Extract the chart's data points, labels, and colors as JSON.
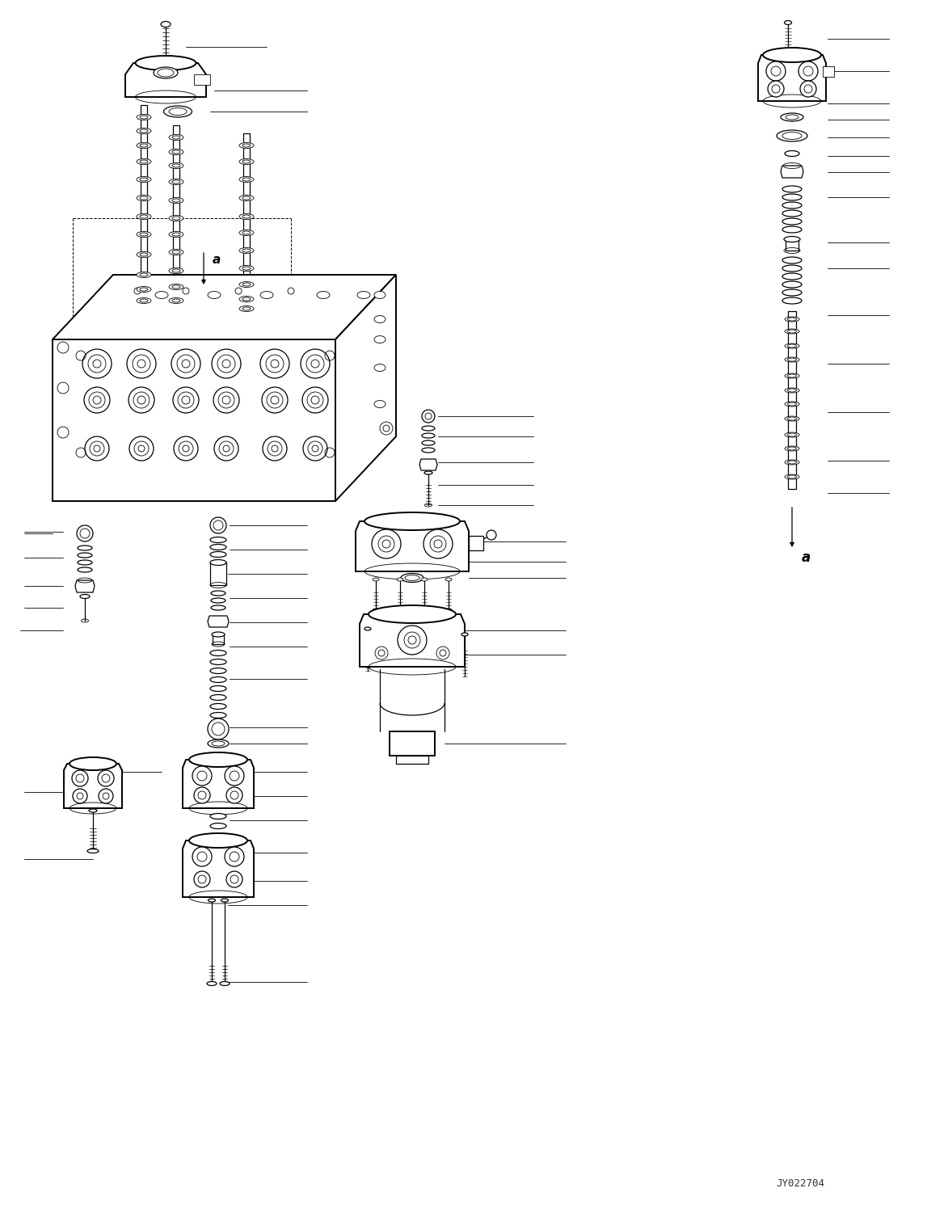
{
  "image_code": "JY022704",
  "background_color": "#ffffff",
  "line_color": "#000000",
  "figsize": [
    11.47,
    14.91
  ],
  "dpi": 100,
  "watermark": "JY022704"
}
